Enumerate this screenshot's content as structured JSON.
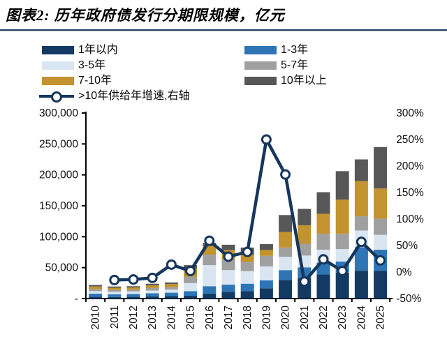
{
  "title": "图表2: 历年政府债发行分期限规模，亿元",
  "legend": {
    "items": [
      {
        "label": "1年以内",
        "color": "#133a63",
        "type": "box"
      },
      {
        "label": "1-3年",
        "color": "#2e75b6",
        "type": "box"
      },
      {
        "label": "3-5年",
        "color": "#d9e6f2",
        "type": "box"
      },
      {
        "label": "5-7年",
        "color": "#a0a0a0",
        "type": "box"
      },
      {
        "label": "7-10年",
        "color": "#c2932e",
        "type": "box"
      },
      {
        "label": "10年以上",
        "color": "#575757",
        "type": "box"
      },
      {
        "label": ">10年供给年增速,右轴",
        "color": "#16365c",
        "type": "line"
      }
    ]
  },
  "axes": {
    "left_tick_labels": [
      "300,000",
      "250,000",
      "200,000",
      "150,000",
      "100,000",
      "50,000",
      "-"
    ],
    "right_tick_labels": [
      "300%",
      "250%",
      "200%",
      "150%",
      "100%",
      "50%",
      "0%",
      "-50%"
    ]
  },
  "chart_data": {
    "type": "bar",
    "stacked": true,
    "title": "历年政府债发行分期限规模",
    "unit": "亿元",
    "legend_position": "top",
    "grid": false,
    "categories": [
      "2010",
      "2011",
      "2012",
      "2013",
      "2014",
      "2015",
      "2016",
      "2017",
      "2018",
      "2019",
      "2020",
      "2021",
      "2022",
      "2023",
      "2024",
      "2025"
    ],
    "series": [
      {
        "name": "1年以内",
        "color": "#133a63",
        "values": [
          3000,
          2500,
          3000,
          3500,
          4000,
          4500,
          8000,
          11000,
          12000,
          16500,
          30000,
          33500,
          39000,
          42000,
          45000,
          45000
        ]
      },
      {
        "name": "1-3年",
        "color": "#2e75b6",
        "values": [
          5000,
          4500,
          4500,
          5000,
          5500,
          7500,
          12000,
          11500,
          12000,
          13000,
          16000,
          17000,
          19000,
          18000,
          38000,
          34000
        ]
      },
      {
        "name": "3-5年",
        "color": "#d9e6f2",
        "values": [
          4000,
          4000,
          4000,
          4500,
          5000,
          13000,
          34000,
          23500,
          20500,
          22500,
          21500,
          19000,
          21000,
          20000,
          27000,
          24000
        ]
      },
      {
        "name": "5-7年",
        "color": "#a0a0a0",
        "values": [
          3500,
          3000,
          3000,
          4000,
          4000,
          10500,
          17000,
          16500,
          15000,
          17000,
          15000,
          19000,
          26000,
          25000,
          23000,
          26000
        ]
      },
      {
        "name": "7-10年",
        "color": "#c2932e",
        "values": [
          4000,
          3500,
          3500,
          4500,
          5000,
          13000,
          14000,
          16000,
          11500,
          9500,
          25000,
          30000,
          32000,
          55000,
          57000,
          49000
        ]
      },
      {
        "name": "10年以上",
        "color": "#575757",
        "values": [
          2500,
          2000,
          2000,
          2500,
          2500,
          5500,
          5000,
          8500,
          11500,
          9500,
          27500,
          26500,
          35000,
          46000,
          35000,
          67000
        ]
      }
    ],
    "line": {
      "name": ">10年供给年增速,右轴",
      "color": "#16365c",
      "axis": "right",
      "unit": "%",
      "values": [
        null,
        -15,
        -14,
        -11,
        14,
        2,
        59,
        29,
        38,
        250,
        184,
        -18,
        24,
        2,
        57,
        22
      ]
    },
    "left_axis": {
      "min": 0,
      "max": 300000,
      "step": 50000,
      "label": "亿元"
    },
    "right_axis": {
      "min": -50,
      "max": 300,
      "step": 50,
      "format": "percent"
    }
  }
}
